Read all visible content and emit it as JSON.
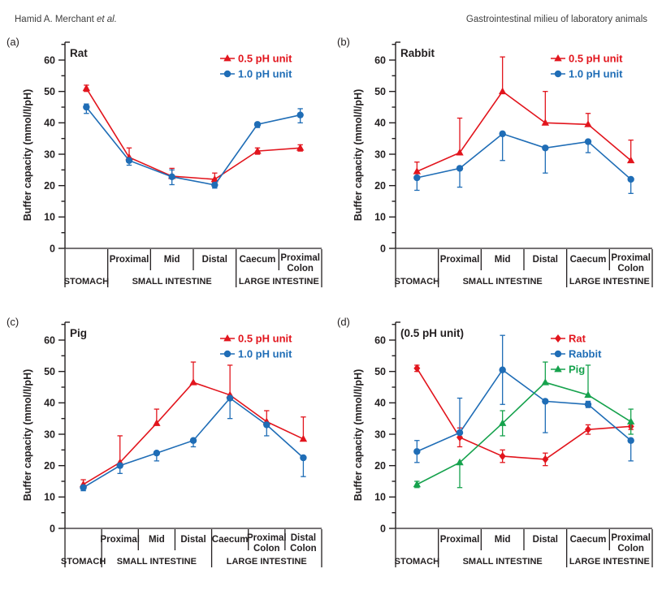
{
  "header": {
    "author": "Hamid A. Merchant ",
    "author_suffix": "et al.",
    "running_title": "Gastrointestinal milieu of laboratory animals"
  },
  "colors": {
    "red": "#e2151d",
    "blue": "#1f6db6",
    "green": "#16a24d",
    "axis": "#231f20"
  },
  "axis": {
    "ylabel": "Buffer capacity (mmol/l/pH)",
    "ylim": [
      0,
      60
    ],
    "yticks": [
      0,
      10,
      20,
      30,
      40,
      50,
      60
    ],
    "minor_step": 5
  },
  "chart_data": [
    {
      "panel": "(a)",
      "title": "Rat",
      "type": "line",
      "categories": [
        "STOMACH",
        "Proximal",
        "Mid",
        "Distal",
        "Caecum",
        "Proximal Colon"
      ],
      "axis_row1": [
        "",
        "Proximal",
        "Mid",
        "Distal",
        "Caecum",
        "Proximal|Colon"
      ],
      "axis_row2": [
        {
          "label": "STOMACH",
          "span": [
            0,
            0
          ]
        },
        {
          "label": "SMALL INTESTINE",
          "span": [
            1,
            3
          ]
        },
        {
          "label": "LARGE INTESTINE",
          "span": [
            4,
            5
          ]
        }
      ],
      "legend_position": "top-right",
      "series": [
        {
          "name": "0.5 pH unit",
          "color_key": "red",
          "marker": "triangle",
          "values": [
            51,
            29,
            23,
            22,
            31,
            32
          ],
          "err_up": [
            1,
            3,
            2.5,
            2,
            1,
            1
          ],
          "err_down": [
            1,
            0,
            0,
            1,
            1,
            1
          ]
        },
        {
          "name": "1.0 pH unit",
          "color_key": "blue",
          "marker": "circle",
          "values": [
            45,
            28,
            22.8,
            20.2,
            39.5,
            42.5
          ],
          "err_up": [
            1,
            0,
            2.2,
            0,
            0,
            2
          ],
          "err_down": [
            2,
            1.5,
            2.5,
            1,
            1,
            2.5
          ]
        }
      ]
    },
    {
      "panel": "(b)",
      "title": "Rabbit",
      "type": "line",
      "categories": [
        "STOMACH",
        "Proximal",
        "Mid",
        "Distal",
        "Caecum",
        "Proximal Colon"
      ],
      "axis_row1": [
        "",
        "Proximal",
        "Mid",
        "Distal",
        "Caecum",
        "Proximal|Colon"
      ],
      "axis_row2": [
        {
          "label": "STOMACH",
          "span": [
            0,
            0
          ]
        },
        {
          "label": "SMALL INTESTINE",
          "span": [
            1,
            3
          ]
        },
        {
          "label": "LARGE INTESTINE",
          "span": [
            4,
            5
          ]
        }
      ],
      "legend_position": "top-right",
      "series": [
        {
          "name": "0.5 pH unit",
          "color_key": "red",
          "marker": "triangle",
          "values": [
            24.5,
            30.5,
            50,
            40,
            39.5,
            28
          ],
          "err_up": [
            3,
            11,
            11,
            10,
            3.5,
            6.5
          ],
          "err_down": [
            1.5,
            0,
            0,
            0,
            0,
            0
          ]
        },
        {
          "name": "1.0 pH unit",
          "color_key": "blue",
          "marker": "circle",
          "values": [
            22.5,
            25.5,
            36.5,
            32,
            34,
            22
          ],
          "err_up": [
            0,
            0,
            0,
            0,
            0.5,
            0
          ],
          "err_down": [
            4,
            6,
            8.5,
            8,
            3.5,
            4.5
          ]
        }
      ]
    },
    {
      "panel": "(c)",
      "title": "Pig",
      "type": "line",
      "categories": [
        "STOMACH",
        "Proximal",
        "Mid",
        "Distal",
        "Caecum",
        "Proximal Colon",
        "Distal Colon"
      ],
      "axis_row1": [
        "",
        "Proximal",
        "Mid",
        "Distal",
        "Caecum",
        "Proximal|Colon",
        "Distal|Colon"
      ],
      "axis_row2": [
        {
          "label": "STOMACH",
          "span": [
            0,
            0
          ]
        },
        {
          "label": "SMALL INTESTINE",
          "span": [
            1,
            3
          ]
        },
        {
          "label": "LARGE INTESTINE",
          "span": [
            4,
            6
          ]
        }
      ],
      "legend_position": "top-right",
      "series": [
        {
          "name": "0.5 pH unit",
          "color_key": "red",
          "marker": "triangle",
          "values": [
            14,
            21,
            33.5,
            46.5,
            42.5,
            34,
            28.5
          ],
          "err_up": [
            1.5,
            8.5,
            4.5,
            6.5,
            9.5,
            3.5,
            7
          ],
          "err_down": [
            1,
            0,
            0,
            0,
            0,
            0,
            0
          ]
        },
        {
          "name": "1.0 pH unit",
          "color_key": "blue",
          "marker": "circle",
          "values": [
            13,
            20,
            24,
            28,
            41.5,
            33,
            22.5
          ],
          "err_up": [
            0.5,
            0,
            0,
            0,
            0.5,
            0,
            0
          ],
          "err_down": [
            1,
            2.5,
            2.5,
            2,
            6.5,
            3.5,
            6
          ]
        }
      ]
    },
    {
      "panel": "(d)",
      "title": "(0.5 pH unit)",
      "type": "line",
      "categories": [
        "STOMACH",
        "Proximal",
        "Mid",
        "Distal",
        "Caecum",
        "Proximal Colon"
      ],
      "axis_row1": [
        "",
        "Proximal",
        "Mid",
        "Distal",
        "Caecum",
        "Proximal|Colon"
      ],
      "axis_row2": [
        {
          "label": "STOMACH",
          "span": [
            0,
            0
          ]
        },
        {
          "label": "SMALL INTESTINE",
          "span": [
            1,
            3
          ]
        },
        {
          "label": "LARGE INTESTINE",
          "span": [
            4,
            5
          ]
        }
      ],
      "legend_position": "top-right",
      "series": [
        {
          "name": "Rat",
          "color_key": "red",
          "marker": "diamond",
          "values": [
            51,
            29,
            23,
            22,
            31.5,
            32.5
          ],
          "err_up": [
            1,
            3,
            2,
            2,
            1.5,
            1
          ],
          "err_down": [
            1,
            3,
            2,
            2,
            1.5,
            1
          ]
        },
        {
          "name": "Rabbit",
          "color_key": "blue",
          "marker": "circle",
          "values": [
            24.5,
            30.5,
            50.5,
            40.5,
            39.5,
            28
          ],
          "err_up": [
            3.5,
            11,
            11,
            0,
            1,
            0
          ],
          "err_down": [
            3.5,
            0,
            11,
            10,
            1,
            6.5
          ]
        },
        {
          "name": "Pig",
          "color_key": "green",
          "marker": "triangle",
          "values": [
            14,
            21,
            33.5,
            46.5,
            42.5,
            34
          ],
          "err_up": [
            1,
            0,
            4,
            6.5,
            9.5,
            4
          ],
          "err_down": [
            1,
            8,
            4,
            0,
            0,
            4
          ]
        }
      ]
    }
  ]
}
